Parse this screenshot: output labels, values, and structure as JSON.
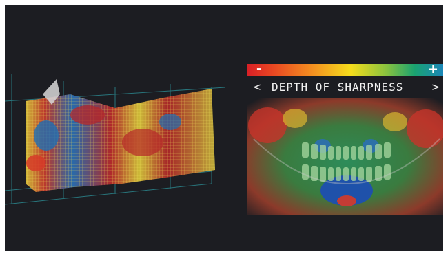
{
  "scale": {
    "min_label": "-",
    "max_label": "+"
  },
  "title": {
    "left_chevron": "<",
    "text": "DEPTH OF SHARPNESS",
    "right_chevron": ">"
  },
  "colors": {
    "background": "#1c1d22",
    "grid": "#2a7f86",
    "high": "#b6272a",
    "mid": "#e8d73c",
    "low": "#1e6fb4"
  },
  "icons": [
    "3d-sharpness-mesh",
    "panoramic-dental-xray"
  ]
}
